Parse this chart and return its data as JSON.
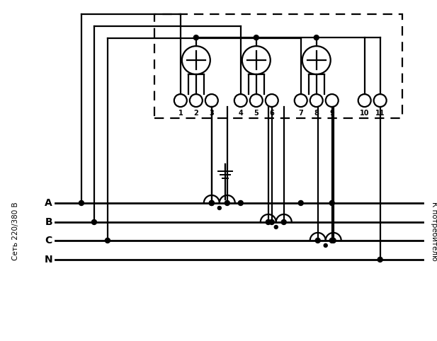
{
  "bg_color": "#ffffff",
  "line_color": "#000000",
  "lw": 1.6,
  "fig_width": 6.17,
  "fig_height": 4.82,
  "dpi": 100,
  "left_label": "Сеть 220/380 В",
  "right_label": "К потребителю",
  "phase_labels": [
    "A",
    "B",
    "C",
    "N"
  ],
  "terminal_labels": [
    "1",
    "2",
    "3",
    "4",
    "5",
    "6",
    "7",
    "8",
    "9",
    "10",
    "11"
  ]
}
